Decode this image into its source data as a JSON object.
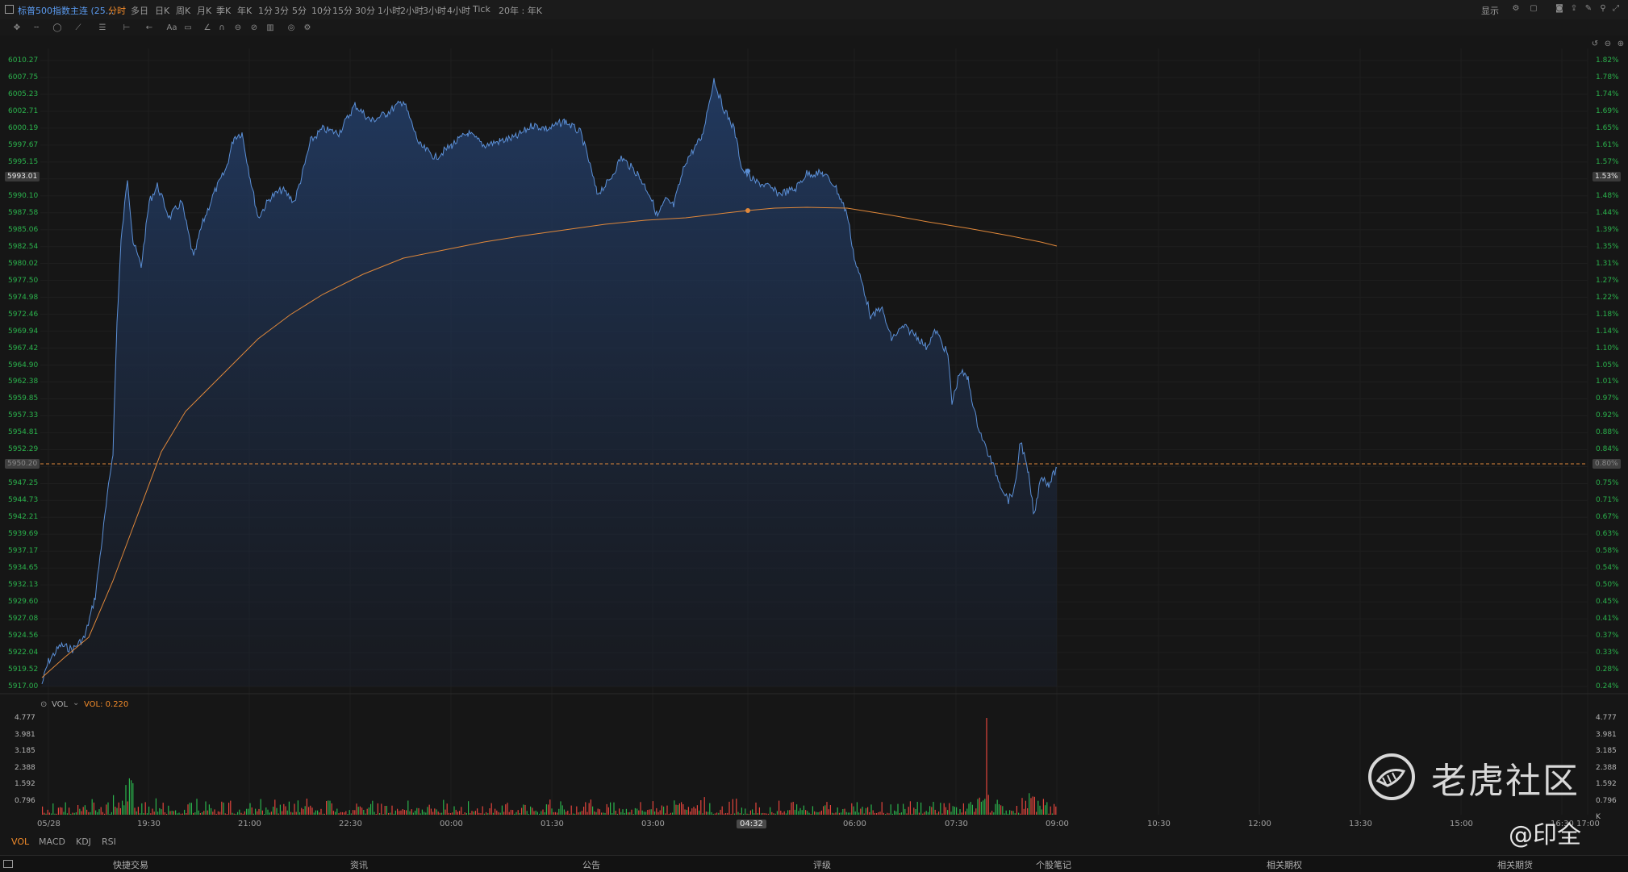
{
  "app": {
    "title": "标普500指数主连 (25...",
    "timeframes": [
      "分时",
      "多日",
      "日K",
      "周K",
      "月K",
      "季K",
      "年K",
      "1分",
      "3分",
      "5分",
      "10分",
      "15分",
      "30分",
      "1小时",
      "2小时",
      "3小时",
      "4小时",
      "Tick",
      "20年 : 年K"
    ],
    "active_timeframe": "分时",
    "right_menu": "显示"
  },
  "chart": {
    "price_labels": [
      "6010.27",
      "6007.75",
      "6005.23",
      "6002.71",
      "6000.19",
      "5997.67",
      "5995.15",
      "5993.01",
      "5990.10",
      "5987.58",
      "5985.06",
      "5982.54",
      "5980.02",
      "5977.50",
      "5974.98",
      "5972.46",
      "5969.94",
      "5967.42",
      "5964.90",
      "5962.38",
      "5959.85",
      "5957.33",
      "5954.81",
      "5952.29",
      "5950.20",
      "5947.25",
      "5944.73",
      "5942.21",
      "5939.69",
      "5937.17",
      "5934.65",
      "5932.13",
      "5929.60",
      "5927.08",
      "5924.56",
      "5922.04",
      "5919.52",
      "5917.00"
    ],
    "pct_labels": [
      "1.82%",
      "1.78%",
      "1.74%",
      "1.69%",
      "1.65%",
      "1.61%",
      "1.57%",
      "1.53%",
      "1.48%",
      "1.44%",
      "1.39%",
      "1.35%",
      "1.31%",
      "1.27%",
      "1.22%",
      "1.18%",
      "1.14%",
      "1.10%",
      "1.05%",
      "1.01%",
      "0.97%",
      "0.92%",
      "0.88%",
      "0.84%",
      "0.80%",
      "0.75%",
      "0.71%",
      "0.67%",
      "0.63%",
      "0.58%",
      "0.54%",
      "0.50%",
      "0.45%",
      "0.41%",
      "0.37%",
      "0.33%",
      "0.28%",
      "0.24%"
    ],
    "current_price": "5993.01",
    "current_pct": "1.53%",
    "ref_price": "5950.20",
    "ref_pct": "0.80%",
    "x_labels": [
      "05/28",
      "19:30",
      "21:00",
      "22:30",
      "00:00",
      "01:30",
      "03:00",
      "04:32",
      "06:00",
      "07:30",
      "09:00",
      "10:30",
      "12:00",
      "13:30",
      "15:00",
      "16:30",
      "17:00"
    ],
    "hover_time": "04:32",
    "colors": {
      "line": "#5b8fd6",
      "avg": "#e0883a",
      "up": "#e2453c",
      "down": "#2bb24c",
      "bg": "#161616"
    }
  },
  "volume": {
    "indicator": "VOL",
    "value_label": "VOL: 0.220",
    "labels": [
      "4.777",
      "3.981",
      "3.185",
      "2.388",
      "1.592",
      "0.796"
    ],
    "right_labels": [
      "4.777",
      "3.981",
      "3.185",
      "2.388",
      "1.592",
      "0.796",
      "K"
    ]
  },
  "indicator_tabs": [
    "VOL",
    "MACD",
    "KDJ",
    "RSI"
  ],
  "footer_items": [
    "快捷交易",
    "资讯",
    "公告",
    "评级",
    "个股笔记",
    "相关期权",
    "相关期货"
  ],
  "watermark": {
    "text": "老虎社区",
    "author": "@印全"
  }
}
